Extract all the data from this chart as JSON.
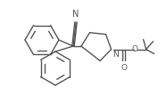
{
  "line_color": "#555555",
  "line_width": 1.0,
  "figsize": [
    1.77,
    1.07
  ],
  "dpi": 100,
  "xlim": [
    0,
    177
  ],
  "ylim": [
    0,
    107
  ]
}
